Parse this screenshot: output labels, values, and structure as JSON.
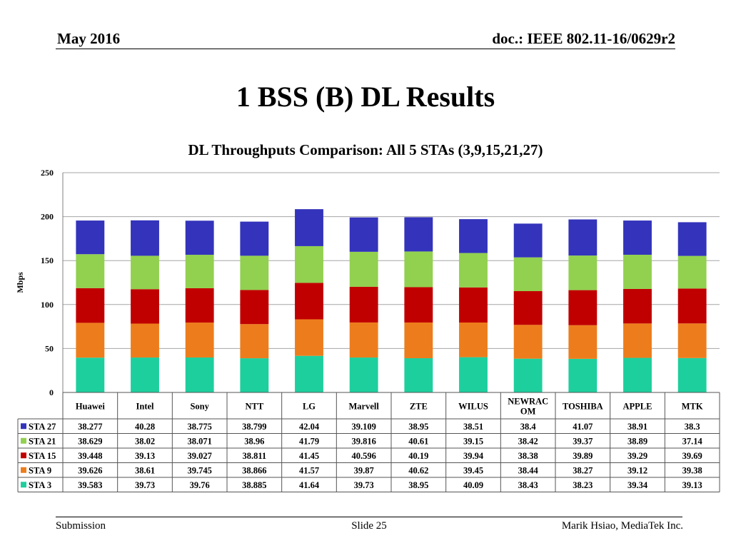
{
  "header": {
    "date": "May 2016",
    "doc": "doc.: IEEE 802.11-16/0629r2"
  },
  "slide_title": "1 BSS (B) DL Results",
  "footer": {
    "left": "Submission",
    "center": "Slide 25",
    "right": "Marik Hsiao, MediaTek Inc."
  },
  "chart_data": {
    "type": "bar",
    "stacked": true,
    "title": "DL Throughputs Comparison: All 5 STAs (3,9,15,21,27)",
    "xlabel": "",
    "ylabel": "Mbps",
    "ylim": [
      0,
      250
    ],
    "yticks": [
      0,
      50,
      100,
      150,
      200,
      250
    ],
    "grid": true,
    "legend": "data-table",
    "categories": [
      "Huawei",
      "Intel",
      "Sony",
      "NTT",
      "LG",
      "Marvell",
      "ZTE",
      "WILUS",
      "NEWRACOM",
      "TOSHIBA",
      "APPLE",
      "MTK"
    ],
    "category_display": [
      "Huawei",
      "Intel",
      "Sony",
      "NTT",
      "LG",
      "Marvell",
      "ZTE",
      "WILUS",
      "NEWRAC\nOM",
      "TOSHIBA",
      "APPLE",
      "MTK"
    ],
    "series": [
      {
        "name": "STA 3",
        "color": "#1ecf9e",
        "values": [
          "39.583",
          "39.73",
          "39.76",
          "38.885",
          "41.64",
          "39.73",
          "38.95",
          "40.09",
          "38.43",
          "38.23",
          "39.34",
          "39.13"
        ]
      },
      {
        "name": "STA 9",
        "color": "#ed7d1c",
        "values": [
          "39.626",
          "38.61",
          "39.745",
          "38.866",
          "41.57",
          "39.87",
          "40.62",
          "39.45",
          "38.44",
          "38.27",
          "39.12",
          "39.38"
        ]
      },
      {
        "name": "STA 15",
        "color": "#c00000",
        "values": [
          "39.448",
          "39.13",
          "39.027",
          "38.811",
          "41.45",
          "40.596",
          "40.19",
          "39.94",
          "38.38",
          "39.89",
          "39.29",
          "39.69"
        ]
      },
      {
        "name": "STA 21",
        "color": "#92d050",
        "values": [
          "38.629",
          "38.02",
          "38.071",
          "38.96",
          "41.79",
          "39.816",
          "40.61",
          "39.15",
          "38.42",
          "39.37",
          "38.89",
          "37.14"
        ]
      },
      {
        "name": "STA 27",
        "color": "#3333bb",
        "values": [
          "38.277",
          "40.28",
          "38.775",
          "38.799",
          "42.04",
          "39.109",
          "38.95",
          "38.51",
          "38.4",
          "41.07",
          "38.91",
          "38.3"
        ]
      }
    ],
    "table_row_order": [
      "STA 27",
      "STA 21",
      "STA 15",
      "STA 9",
      "STA 3"
    ]
  }
}
